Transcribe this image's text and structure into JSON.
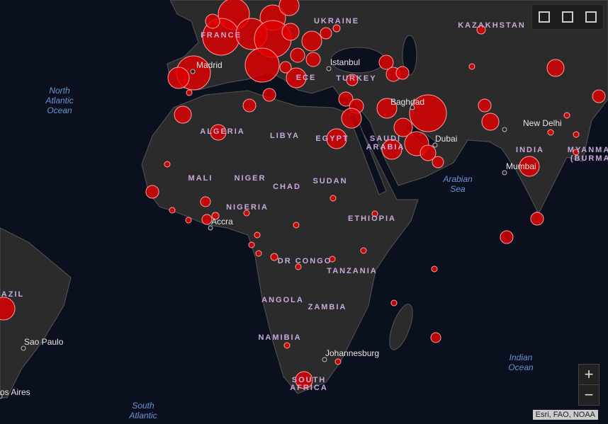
{
  "map": {
    "countries": [
      "UKRAINE",
      "KAZAKHSTAN",
      "FRANCE",
      "TURKEY",
      "ALGERIA",
      "LIBYA",
      "EGYPT",
      "SAUDI",
      "ARABIA",
      "INDIA",
      "MYANMAR",
      "(BURMA)",
      "MALI",
      "NIGER",
      "CHAD",
      "SUDAN",
      "NIGERIA",
      "ETHIOPIA",
      "DR CONGO",
      "TANZANIA",
      "ANGOLA",
      "ZAMBIA",
      "NAMIBIA",
      "SOUTH",
      "AFRICA",
      "AZIL",
      "ECE"
    ],
    "cities": [
      "Istanbul",
      "Madrid",
      "Baghdad",
      "Dubai",
      "New Delhi",
      "Mumbai",
      "Accra",
      "Johannesburg",
      "Sao Paulo",
      "os Aires"
    ],
    "oceans": [
      [
        "North",
        "Atlantic",
        "Ocean"
      ],
      [
        "Arabian",
        "Sea"
      ],
      [
        "Indian",
        "Ocean"
      ],
      [
        "South",
        "Atlantic"
      ]
    ],
    "attribution": "Esri, FAO, NOAA",
    "zoom": {
      "in": "+",
      "out": "−"
    }
  }
}
